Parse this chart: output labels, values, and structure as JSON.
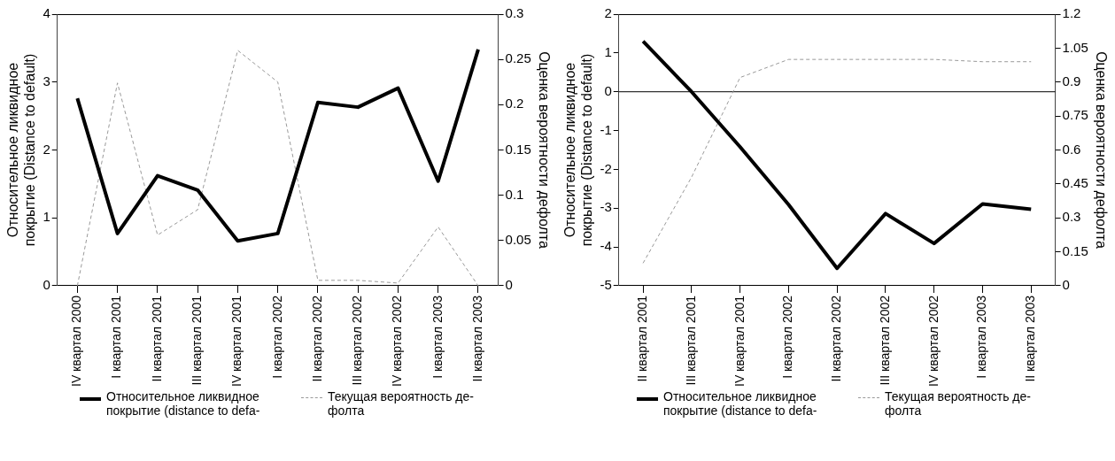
{
  "chart_data": [
    {
      "type": "line",
      "ylabel": "Относительное ликвидное\nпокрытие (Distance to default)",
      "y2label": "Оценка вероятности дефолта",
      "categories": [
        "IV квартал 2000",
        "I квартал 2001",
        "II квартал 2001",
        "III квартал 2001",
        "IV квартал 2001",
        "I квартал 2002",
        "II квартал 2002",
        "III квартал 2002",
        "IV квартал 2002",
        "I квартал 2003",
        "II квартал 2003"
      ],
      "series": [
        {
          "name": "Относительное ликвидное\nпокрытие (distance to defa-",
          "color": "#000000",
          "line_style": "solid",
          "values": [
            2.76,
            0.77,
            1.62,
            1.41,
            0.66,
            0.77,
            2.7,
            2.63,
            2.91,
            1.54,
            3.48
          ]
        },
        {
          "name": "Текущая вероятность де-\nфолта",
          "color": "#999999",
          "line_style": "dashed",
          "axis": "y2",
          "values": [
            0,
            0.224,
            0.056,
            0.084,
            0.26,
            0.225,
            0.006,
            0.006,
            0.003,
            0.065,
            0
          ]
        }
      ],
      "ylim": [
        0,
        4
      ],
      "yticks": [
        0,
        1,
        2,
        3,
        4
      ],
      "y2lim": [
        0,
        0.3
      ],
      "y2ticks": [
        0,
        0.05,
        0.1,
        0.15,
        0.2,
        0.25,
        0.3
      ],
      "grid": false,
      "legend": "bottom",
      "marker": "none"
    },
    {
      "type": "line",
      "ylabel": "Относительное ликвидное\nпокрытие (Distance to default)",
      "y2label": "Оценка вероятности дефолта",
      "categories": [
        "II квартал 2001",
        "III квартал 2001",
        "IV квартал 2001",
        "I квартал 2002",
        "II квартал 2002",
        "III квартал 2002",
        "IV квартал 2002",
        "I квартал 2003",
        "II квартал 2003"
      ],
      "series": [
        {
          "name": "Относительное ликвидное\nпокрытие (distance to defa-",
          "color": "#000000",
          "line_style": "solid",
          "values": [
            1.3,
            0,
            -1.42,
            -2.91,
            -4.55,
            -3.14,
            -3.91,
            -2.89,
            -3.03
          ]
        },
        {
          "name": "Текущая вероятность де-\nфолта",
          "color": "#999999",
          "line_style": "dashed",
          "axis": "y2",
          "values": [
            0.1,
            0.48,
            0.92,
            1.0,
            1.0,
            1.0,
            1.0,
            0.99,
            0.99
          ]
        }
      ],
      "ylim": [
        -5,
        2
      ],
      "yticks": [
        -5,
        -4,
        -3,
        -2,
        -1,
        0,
        1,
        2
      ],
      "y2lim": [
        0,
        1.2
      ],
      "y2ticks": [
        0,
        0.15,
        0.3,
        0.45,
        0.6,
        0.75,
        0.9,
        1.05,
        1.2
      ],
      "grid": false,
      "legend": "bottom",
      "marker": "none",
      "ref_lines": [
        {
          "axis": "y",
          "value": 0,
          "color": "#000000"
        }
      ]
    }
  ]
}
